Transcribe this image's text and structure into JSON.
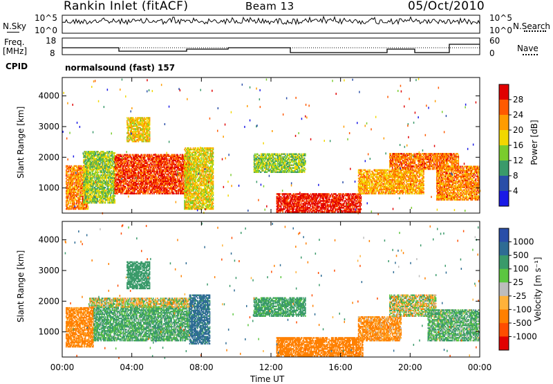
{
  "header": {
    "station": "Rankin Inlet (fitACF)",
    "beam": "Beam 13",
    "date": "05/Oct/2010"
  },
  "noise_panel": {
    "left_label": "N.Sky",
    "left_ticks": [
      "10^5",
      "10^0"
    ],
    "right_ticks": [
      "10^5",
      "10^0"
    ],
    "right_label": "N.Search"
  },
  "freq_panel": {
    "left_label_1": "Freq.",
    "left_label_2": "[MHz]",
    "left_ticks": [
      "18",
      "8"
    ],
    "right_ticks": [
      "60",
      "0"
    ],
    "right_label": "Nave"
  },
  "cpid_panel": {
    "label": "CPID",
    "mode": "normalsound (fast) 157"
  },
  "power_colorbar": {
    "title": "Power [dB]",
    "ticks": [
      "28",
      "24",
      "20",
      "16",
      "12",
      "8",
      "4"
    ],
    "colors": [
      "#e10000",
      "#ff5a00",
      "#ff9c00",
      "#f2d700",
      "#7acc2d",
      "#3a9a6a",
      "#2a4ea8",
      "#1a1ae6"
    ]
  },
  "velocity_colorbar": {
    "title": "Velocity [m s⁻¹]",
    "ticks": [
      "1000",
      "500",
      "100",
      "25",
      "-25",
      "-100",
      "-500",
      "-1000"
    ],
    "colors": [
      "#2a4ea8",
      "#2e6c94",
      "#3a9a6a",
      "#5cc640",
      "#bdbdbd",
      "#ffb23a",
      "#ff8000",
      "#ff4d00",
      "#e10000"
    ]
  },
  "colors": {
    "ground_scatter": "#bdbdbd",
    "background": "#ffffff"
  },
  "chart_data": [
    {
      "type": "heatmap",
      "title": "",
      "xlabel": "Time UT",
      "ylabel": "Slant Range [km]",
      "x_ticks": [
        "00:00",
        "04:00",
        "08:00",
        "12:00",
        "16:00",
        "20:00",
        "00:00"
      ],
      "y_ticks": [
        "1000",
        "2000",
        "3000",
        "4000"
      ],
      "xlim_hours": [
        0,
        24
      ],
      "ylim_km": [
        180,
        4600
      ],
      "quantity": "Power [dB]",
      "clim": [
        0,
        30
      ],
      "regions": [
        {
          "t0": 0.2,
          "t1": 1.5,
          "r0": 300,
          "r1": 1700,
          "v": 22
        },
        {
          "t0": 1.2,
          "t1": 3.0,
          "r0": 500,
          "r1": 2200,
          "v": 14
        },
        {
          "t0": 3.0,
          "t1": 7.3,
          "r0": 800,
          "r1": 2100,
          "v": 26
        },
        {
          "t0": 3.7,
          "t1": 5.0,
          "r0": 2500,
          "r1": 3300,
          "v": 18
        },
        {
          "t0": 7.0,
          "t1": 8.7,
          "r0": 300,
          "r1": 2300,
          "v": 17
        },
        {
          "t0": 11.0,
          "t1": 14.0,
          "r0": 1500,
          "r1": 2100,
          "v": 13
        },
        {
          "t0": 12.3,
          "t1": 17.2,
          "r0": 200,
          "r1": 800,
          "v": 28
        },
        {
          "t0": 17.0,
          "t1": 20.8,
          "r0": 800,
          "r1": 1600,
          "v": 20
        },
        {
          "t0": 18.8,
          "t1": 22.8,
          "r0": 1600,
          "r1": 2100,
          "v": 23
        },
        {
          "t0": 21.5,
          "t1": 24.0,
          "r0": 600,
          "r1": 1700,
          "v": 22
        }
      ]
    },
    {
      "type": "heatmap",
      "title": "",
      "xlabel": "Time UT",
      "ylabel": "Slant Range [km]",
      "x_ticks": [
        "00:00",
        "04:00",
        "08:00",
        "12:00",
        "16:00",
        "20:00",
        "00:00"
      ],
      "y_ticks": [
        "1000",
        "2000",
        "3000",
        "4000"
      ],
      "xlim_hours": [
        0,
        24
      ],
      "ylim_km": [
        180,
        4600
      ],
      "quantity": "Velocity [m s⁻¹]",
      "clim": [
        -1000,
        1000
      ],
      "regions": [
        {
          "t0": 0.2,
          "t1": 1.8,
          "r0": 500,
          "r1": 1800,
          "v": -200
        },
        {
          "t0": 1.8,
          "t1": 7.3,
          "r0": 700,
          "r1": 1800,
          "v": 150
        },
        {
          "t0": 1.5,
          "t1": 7.3,
          "r0": 1800,
          "r1": 2100,
          "v": 0
        },
        {
          "t0": 3.7,
          "t1": 5.0,
          "r0": 2400,
          "r1": 3300,
          "v": 300
        },
        {
          "t0": 7.3,
          "t1": 8.5,
          "r0": 600,
          "r1": 2200,
          "v": 600
        },
        {
          "t0": 11.0,
          "t1": 14.0,
          "r0": 1500,
          "r1": 2100,
          "v": 200
        },
        {
          "t0": 12.3,
          "t1": 17.3,
          "r0": 200,
          "r1": 800,
          "v": -300
        },
        {
          "t0": 17.0,
          "t1": 19.5,
          "r0": 700,
          "r1": 1500,
          "v": -150
        },
        {
          "t0": 18.8,
          "t1": 21.5,
          "r0": 1500,
          "r1": 2200,
          "v": 0
        },
        {
          "t0": 21.0,
          "t1": 24.0,
          "r0": 700,
          "r1": 1700,
          "v": 120
        }
      ]
    }
  ]
}
